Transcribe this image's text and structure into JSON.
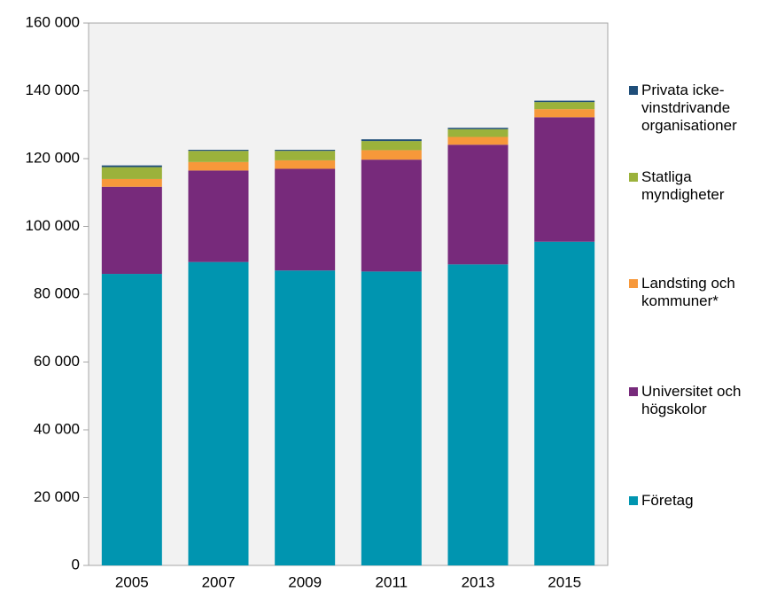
{
  "chart_data": {
    "type": "stacked_bar",
    "categories": [
      "2005",
      "2007",
      "2009",
      "2011",
      "2013",
      "2015"
    ],
    "series": [
      {
        "name": "Företag",
        "color": "#0095b0",
        "values": [
          86000,
          89500,
          87000,
          86700,
          88800,
          95500
        ]
      },
      {
        "name": "Universitet och högskolor",
        "color": "#772a7b",
        "values": [
          25700,
          27000,
          30000,
          33000,
          35300,
          36700
        ]
      },
      {
        "name": "Landsting och kommuner*",
        "color": "#f7983a",
        "values": [
          2300,
          2500,
          2500,
          2800,
          2300,
          2400
        ]
      },
      {
        "name": "Statliga myndigheter",
        "color": "#9bb23b",
        "values": [
          3500,
          3300,
          2800,
          2700,
          2300,
          2100
        ]
      },
      {
        "name": "Privata icke-vinstdrivande organisationer",
        "color": "#1f4e79",
        "values": [
          500,
          300,
          300,
          500,
          400,
          400
        ]
      }
    ],
    "ylim": [
      0,
      160000
    ],
    "yticks": [
      0,
      {
        "value": 20000,
        "label": "20 000"
      },
      {
        "value": 40000,
        "label": "40 000"
      },
      {
        "value": 60000,
        "label": "60 000"
      },
      {
        "value": 80000,
        "label": "80 000"
      },
      {
        "value": 100000,
        "label": "100 000"
      },
      {
        "value": 120000,
        "label": "120 000"
      },
      {
        "value": 140000,
        "label": "140 000"
      },
      {
        "value": 160000,
        "label": "160 000"
      }
    ],
    "legend": "right"
  }
}
